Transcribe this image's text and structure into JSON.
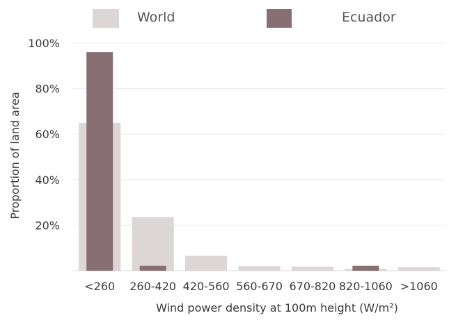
{
  "chart_data": {
    "type": "bar",
    "categories": [
      "<260",
      "260-420",
      "420-560",
      "560-670",
      "670-820",
      "820-1060",
      ">1060"
    ],
    "series": [
      {
        "name": "World",
        "values": [
          65,
          23.5,
          6.5,
          2,
          1.8,
          0.8,
          1.5
        ],
        "color": "#dcd6d6"
      },
      {
        "name": "Ecuador",
        "values": [
          96,
          2.2,
          0,
          0,
          0,
          2.2,
          0
        ],
        "color": "#876f73"
      }
    ],
    "y_ticks": [
      "",
      "20%",
      "40%",
      "60%",
      "80%",
      "100%"
    ],
    "xlabel": "Wind power density at 100m height (W/m²)",
    "ylabel": "Proportion of land area",
    "ylim": [
      0,
      100
    ],
    "grid": true,
    "legend_position": "top"
  }
}
